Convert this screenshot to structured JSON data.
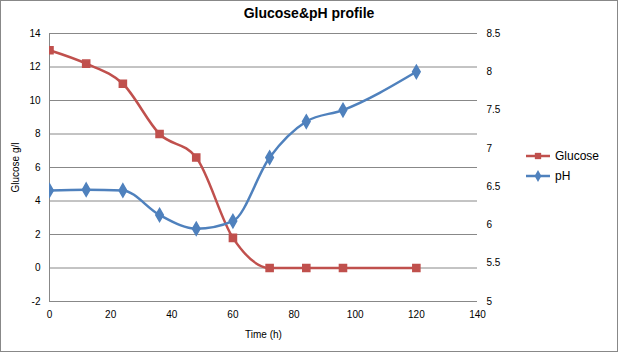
{
  "chart_data": {
    "type": "line",
    "title": "Glucose&pH profile",
    "x_label": "Time (h)",
    "y_label": "Glucose g/l",
    "x": [
      0,
      12,
      24,
      36,
      48,
      60,
      72,
      84,
      96,
      120
    ],
    "series": [
      {
        "name": "Glucose",
        "color": "#c0504d",
        "marker": "square",
        "values": [
          13,
          12.2,
          11,
          8,
          6.6,
          1.8,
          0,
          0,
          0,
          0
        ]
      },
      {
        "name": "pH",
        "color": "#4f81bd",
        "marker": "diamond",
        "axis": "y2",
        "values": [
          6.45,
          6.46,
          6.45,
          6.13,
          5.95,
          6.05,
          6.88,
          7.35,
          7.5,
          8.0
        ]
      }
    ],
    "xlim": [
      0,
      140
    ],
    "xticks": [
      0,
      20,
      40,
      60,
      80,
      100,
      120,
      140
    ],
    "ylim": [
      -2,
      14
    ],
    "yticks": [
      -2,
      0,
      2,
      4,
      6,
      8,
      10,
      12,
      14
    ],
    "y2lim": [
      5,
      8.5
    ],
    "y2ticks": [
      5,
      5.5,
      6,
      6.5,
      7,
      7.5,
      8,
      8.5
    ],
    "grid": true,
    "legend": "right",
    "line_style": "smooth"
  }
}
